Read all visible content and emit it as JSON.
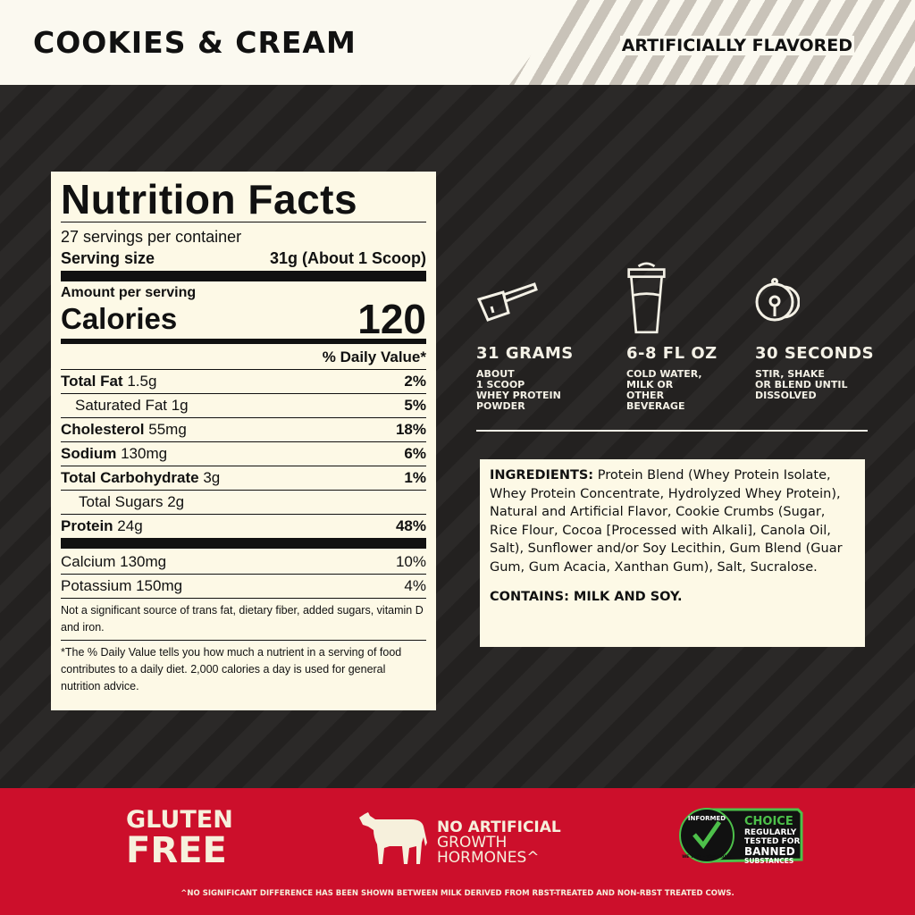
{
  "header": {
    "flavor": "COOKIES & CREAM",
    "flavor_note": "ARTIFICIALLY FLAVORED"
  },
  "nutrition": {
    "title": "Nutrition Facts",
    "servings": "27 servings per container",
    "serving_size_label": "Serving size",
    "serving_size_value": "31g (About 1 Scoop)",
    "amount_per_serving": "Amount per serving",
    "calories_label": "Calories",
    "calories_value": "120",
    "dv_header": "% Daily Value*",
    "rows": [
      {
        "label": "Total Fat",
        "amount": "1.5g",
        "dv": "2%"
      },
      {
        "label": "Saturated Fat 1g",
        "amount": "",
        "dv": "5%"
      },
      {
        "label": "Cholesterol",
        "amount": "55mg",
        "dv": "18%"
      },
      {
        "label": "Sodium",
        "amount": "130mg",
        "dv": "6%"
      },
      {
        "label": "Total Carbohydrate",
        "amount": "3g",
        "dv": "1%"
      },
      {
        "label": "Total Sugars 2g",
        "amount": "",
        "dv": ""
      },
      {
        "label": "Protein",
        "amount": "24g",
        "dv": "48%"
      }
    ],
    "minerals": [
      {
        "label": "Calcium 130mg",
        "dv": "10%"
      },
      {
        "label": "Potassium 150mg",
        "dv": "4%"
      }
    ],
    "note1": "Not a significant source of trans fat, dietary fiber, added sugars, vitamin D and iron.",
    "note2": "*The % Daily Value tells you how much a nutrient in a serving of food contributes to a daily diet. 2,000 calories a day is used for general nutrition advice."
  },
  "directions": [
    {
      "icon": "scoop-icon",
      "title": "31 GRAMS",
      "lines": [
        "ABOUT",
        "1 SCOOP",
        "WHEY PROTEIN",
        "POWDER"
      ]
    },
    {
      "icon": "shaker-icon",
      "title": "6-8 FL OZ",
      "lines": [
        "COLD WATER,",
        "MILK OR",
        "OTHER",
        "BEVERAGE"
      ]
    },
    {
      "icon": "timer-icon",
      "title": "30 SECONDS",
      "lines": [
        "STIR, SHAKE",
        "OR BLEND UNTIL",
        "DISSOLVED"
      ]
    }
  ],
  "ingredients": {
    "label": "INGREDIENTS:",
    "text": " Protein Blend (Whey Protein Isolate, Whey Protein Concentrate, Hydrolyzed Whey Protein), Natural and Artificial Flavor, Cookie Crumbs (Sugar, Rice Flour, Cocoa [Processed with Alkali], Canola Oil, Salt), Sunflower and/or Soy Lecithin, Gum Blend (Guar Gum, Gum Acacia, Xanthan Gum), Salt, Sucralose.",
    "contains": "CONTAINS: MILK AND SOY."
  },
  "badges": {
    "gluten_line1": "GLUTEN",
    "gluten_line2": "FREE",
    "hormones_line1": "NO ARTIFICIAL",
    "hormones_line2": "GROWTH",
    "hormones_line3": "HORMONES^",
    "informed": "INFORMED",
    "we_test": "WE TEST · YOU TRUST",
    "choice": "CHOICE",
    "choice_l1": "REGULARLY",
    "choice_l2": "TESTED FOR",
    "choice_l3": "BANNED",
    "choice_l4": "SUBSTANCES",
    "disclaimer": "^NO SIGNIFICANT DIFFERENCE HAS BEEN SHOWN BETWEEN MILK DERIVED FROM RBST-TREATED AND NON-RBST TREATED COWS."
  },
  "colors": {
    "cream": "#fdf9e6",
    "dark": "#2a2827",
    "red": "#cc0f2b",
    "green": "#4dc04a"
  }
}
